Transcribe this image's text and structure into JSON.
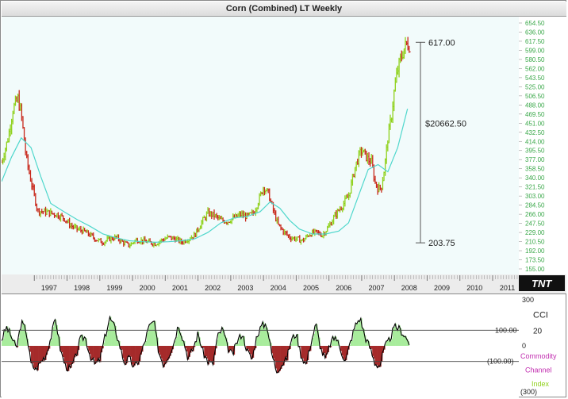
{
  "window": {
    "title": "Corn (Combined) LT Weekly"
  },
  "colors": {
    "background": "#f2fbfb",
    "up_bar": "#8fd11b",
    "down_bar": "#c8281b",
    "moving_average": "#4fd7cc",
    "axis_labels": "#3ba84a",
    "cci_positive_fill": "#a8ec9c",
    "cci_negative_fill": "#a52a2a",
    "cci_line": "#000000"
  },
  "chart_data": [
    {
      "type": "line",
      "title": "Corn (Combined) LT Weekly",
      "x_ticks": [
        "1997",
        "1998",
        "1999",
        "2000",
        "2001",
        "2002",
        "2003",
        "2004",
        "2005",
        "2006",
        "2007",
        "2008",
        "2009",
        "2010",
        "2011"
      ],
      "xlim": [
        1996.0,
        2011.8
      ],
      "ylim": [
        150,
        660
      ],
      "price_series": {
        "name": "",
        "x": [
          1996.0,
          1996.2,
          1996.35,
          1996.5,
          1996.6,
          1996.75,
          1996.9,
          1997.0,
          1997.1,
          1997.3,
          1997.5,
          1997.7,
          1997.9,
          1998.1,
          1998.3,
          1998.5,
          1998.7,
          1998.9,
          1999.1,
          1999.3,
          1999.5,
          1999.7,
          1999.9,
          2000.1,
          2000.3,
          2000.5,
          2000.7,
          2000.9,
          2001.1,
          2001.3,
          2001.5,
          2001.7,
          2001.9,
          2002.1,
          2002.3,
          2002.5,
          2002.7,
          2002.9,
          2003.1,
          2003.3,
          2003.5,
          2003.7,
          2003.9,
          2004.0,
          2004.15,
          2004.3,
          2004.45,
          2004.6,
          2004.8,
          2005.0,
          2005.2,
          2005.4,
          2005.6,
          2005.8,
          2006.0,
          2006.2,
          2006.4,
          2006.6,
          2006.8,
          2006.9,
          2007.0,
          2007.1,
          2007.2,
          2007.3,
          2007.4,
          2007.5,
          2007.6,
          2007.7,
          2007.8,
          2007.9,
          2008.0,
          2008.1,
          2008.2,
          2008.3,
          2008.4,
          2008.45
        ],
        "y": [
          370,
          420,
          480,
          500,
          470,
          380,
          330,
          300,
          270,
          268,
          265,
          262,
          255,
          240,
          232,
          228,
          220,
          210,
          205,
          212,
          215,
          205,
          198,
          210,
          208,
          205,
          202,
          210,
          215,
          212,
          205,
          212,
          220,
          245,
          265,
          260,
          250,
          248,
          255,
          262,
          258,
          265,
          300,
          320,
          305,
          270,
          240,
          228,
          215,
          212,
          208,
          222,
          225,
          220,
          238,
          262,
          280,
          300,
          360,
          380,
          395,
          385,
          375,
          370,
          330,
          315,
          318,
          360,
          420,
          460,
          520,
          560,
          585,
          605,
          615,
          612
        ]
      },
      "moving_average": {
        "name": "",
        "x": [
          1996.0,
          1996.3,
          1996.6,
          1996.9,
          1997.2,
          1997.5,
          1997.9,
          1998.3,
          1998.7,
          1999.1,
          1999.5,
          1999.9,
          2000.3,
          2000.7,
          2001.1,
          2001.5,
          2001.9,
          2002.3,
          2002.7,
          2003.1,
          2003.5,
          2003.9,
          2004.2,
          2004.5,
          2004.8,
          2005.1,
          2005.5,
          2005.9,
          2006.3,
          2006.6,
          2006.9,
          2007.2,
          2007.5,
          2007.8,
          2008.1,
          2008.4
        ],
        "y": [
          330,
          380,
          420,
          400,
          340,
          285,
          268,
          252,
          238,
          222,
          214,
          208,
          206,
          205,
          206,
          208,
          212,
          225,
          245,
          255,
          258,
          268,
          288,
          275,
          250,
          232,
          222,
          222,
          228,
          245,
          300,
          355,
          365,
          350,
          400,
          480
        ]
      },
      "annotations": {
        "high_label": "617.00",
        "low_label": "203.75",
        "range_label": "$20662.50",
        "high_value": 617,
        "low_value": 203.75
      },
      "right_axis_labels": [
        "654.50",
        "636.00",
        "617.50",
        "599.00",
        "580.50",
        "562.00",
        "543.50",
        "525.00",
        "506.50",
        "488.00",
        "469.50",
        "451.00",
        "432.50",
        "414.00",
        "395.50",
        "377.00",
        "358.50",
        "340.00",
        "321.50",
        "303.00",
        "284.50",
        "266.00",
        "247.50",
        "229.00",
        "210.50",
        "192.00",
        "173.50",
        "155.00"
      ],
      "grid": false
    },
    {
      "type": "line",
      "title": "CCI",
      "subtitle_lines": [
        "Commodity",
        "Channel",
        "Index"
      ],
      "ylim": [
        -300,
        300
      ],
      "reference_lines": [
        100,
        -100
      ],
      "reference_labels": [
        "100.00",
        "(100.00)"
      ],
      "axis_labels": [
        "300",
        "0",
        "(300)"
      ],
      "current_value": "20",
      "series": {
        "name": "CCI",
        "x": [
          1996.0,
          1996.15,
          1996.3,
          1996.45,
          1996.6,
          1996.75,
          1996.9,
          1997.05,
          1997.2,
          1997.35,
          1997.5,
          1997.65,
          1997.8,
          1997.95,
          1998.1,
          1998.25,
          1998.4,
          1998.55,
          1998.7,
          1998.85,
          1999.0,
          1999.15,
          1999.3,
          1999.45,
          1999.6,
          1999.75,
          1999.9,
          2000.05,
          2000.2,
          2000.35,
          2000.5,
          2000.65,
          2000.8,
          2000.95,
          2001.1,
          2001.25,
          2001.4,
          2001.55,
          2001.7,
          2001.85,
          2002.0,
          2002.15,
          2002.3,
          2002.45,
          2002.6,
          2002.75,
          2002.9,
          2003.05,
          2003.2,
          2003.35,
          2003.5,
          2003.65,
          2003.8,
          2003.95,
          2004.1,
          2004.25,
          2004.4,
          2004.55,
          2004.7,
          2004.85,
          2005.0,
          2005.15,
          2005.3,
          2005.45,
          2005.6,
          2005.75,
          2005.9,
          2006.05,
          2006.2,
          2006.35,
          2006.5,
          2006.65,
          2006.8,
          2006.95,
          2007.1,
          2007.25,
          2007.4,
          2007.55,
          2007.7,
          2007.85,
          2008.0,
          2008.15,
          2008.3,
          2008.45
        ],
        "y": [
          40,
          120,
          60,
          -20,
          150,
          100,
          -120,
          -150,
          -100,
          -60,
          50,
          180,
          -30,
          -130,
          -150,
          -80,
          40,
          60,
          -60,
          -120,
          -90,
          50,
          180,
          120,
          10,
          -110,
          -80,
          -140,
          -90,
          10,
          120,
          160,
          -40,
          -120,
          -60,
          10,
          140,
          40,
          -80,
          -20,
          80,
          -40,
          -100,
          -120,
          60,
          110,
          -10,
          -60,
          30,
          80,
          -30,
          -90,
          70,
          130,
          140,
          -50,
          -160,
          -120,
          -90,
          40,
          80,
          -60,
          -120,
          20,
          140,
          -20,
          -90,
          20,
          60,
          -20,
          -100,
          20,
          130,
          180,
          60,
          -10,
          -110,
          -130,
          -10,
          40,
          120,
          110,
          70,
          20
        ]
      },
      "grid": false
    }
  ]
}
